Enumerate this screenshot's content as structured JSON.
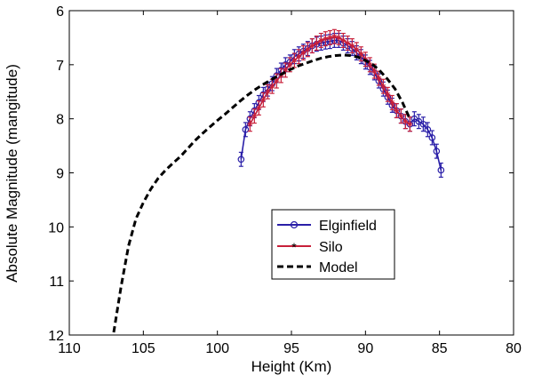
{
  "chart_data": {
    "type": "line",
    "title": "",
    "xlabel": "Height (Km)",
    "ylabel": "Absolute Magnitude (mangitude)",
    "xlim": [
      80,
      110
    ],
    "ylim": [
      6,
      12
    ],
    "x_reversed": true,
    "y_reversed": true,
    "x_ticks": [
      110,
      105,
      100,
      95,
      90,
      85,
      80
    ],
    "y_ticks": [
      6,
      7,
      8,
      9,
      10,
      11,
      12
    ],
    "grid": false,
    "legend_placement": "center-right",
    "series": [
      {
        "name": "Elginfield",
        "color": "#2a1fa8",
        "marker": "circle",
        "style": "solid",
        "x": [
          98.4,
          98.1,
          97.8,
          97.5,
          97.2,
          96.9,
          96.6,
          96.3,
          96.0,
          95.7,
          95.4,
          95.1,
          94.8,
          94.5,
          94.2,
          93.9,
          93.6,
          93.3,
          93.0,
          92.7,
          92.4,
          92.1,
          91.8,
          91.5,
          91.2,
          90.9,
          90.6,
          90.3,
          90.0,
          89.7,
          89.4,
          89.1,
          88.8,
          88.5,
          88.2,
          87.9,
          87.6,
          87.3,
          87.0,
          86.7,
          86.4,
          86.1,
          85.8,
          85.5,
          85.2,
          84.9
        ],
        "y": [
          8.75,
          8.2,
          8.0,
          7.85,
          7.7,
          7.55,
          7.45,
          7.35,
          7.2,
          7.1,
          7.0,
          6.95,
          6.85,
          6.8,
          6.75,
          6.7,
          6.65,
          6.62,
          6.6,
          6.58,
          6.57,
          6.55,
          6.55,
          6.6,
          6.65,
          6.7,
          6.78,
          6.85,
          6.95,
          7.05,
          7.15,
          7.3,
          7.45,
          7.6,
          7.75,
          7.85,
          7.95,
          8.05,
          8.1,
          8.0,
          8.05,
          8.1,
          8.2,
          8.35,
          8.6,
          8.95
        ],
        "err": 0.13
      },
      {
        "name": "Silo",
        "color": "#c8203a",
        "marker": "star",
        "style": "solid",
        "x": [
          97.8,
          97.5,
          97.2,
          96.9,
          96.6,
          96.3,
          96.0,
          95.7,
          95.4,
          95.1,
          94.8,
          94.5,
          94.2,
          93.9,
          93.6,
          93.3,
          93.0,
          92.7,
          92.4,
          92.1,
          91.8,
          91.5,
          91.2,
          90.9,
          90.6,
          90.3,
          90.0,
          89.7,
          89.4,
          89.1,
          88.8,
          88.5,
          88.2,
          87.9,
          87.6,
          87.3,
          87.0
        ],
        "y": [
          8.1,
          7.95,
          7.8,
          7.65,
          7.5,
          7.4,
          7.3,
          7.2,
          7.1,
          7.0,
          6.92,
          6.85,
          6.78,
          6.72,
          6.65,
          6.6,
          6.55,
          6.52,
          6.5,
          6.48,
          6.5,
          6.55,
          6.6,
          6.65,
          6.72,
          6.8,
          6.9,
          7.0,
          7.12,
          7.25,
          7.4,
          7.55,
          7.7,
          7.85,
          7.95,
          8.05,
          8.1
        ],
        "err": 0.13
      },
      {
        "name": "Model",
        "color": "#000000",
        "marker": "none",
        "style": "dashed",
        "x": [
          107.0,
          106.5,
          106.0,
          105.5,
          105.0,
          104.5,
          104.0,
          103.5,
          103.0,
          102.5,
          102.0,
          101.5,
          101.0,
          100.5,
          100.0,
          99.5,
          99.0,
          98.5,
          98.0,
          97.5,
          97.0,
          96.5,
          96.0,
          95.5,
          95.0,
          94.5,
          94.0,
          93.5,
          93.0,
          92.5,
          92.0,
          91.5,
          91.0,
          90.5,
          90.0,
          89.5,
          89.0,
          88.5,
          88.0,
          87.5,
          87.0
        ],
        "y": [
          11.95,
          11.1,
          10.35,
          9.85,
          9.55,
          9.3,
          9.1,
          8.95,
          8.82,
          8.7,
          8.55,
          8.4,
          8.27,
          8.15,
          8.03,
          7.92,
          7.8,
          7.68,
          7.57,
          7.47,
          7.38,
          7.3,
          7.22,
          7.15,
          7.08,
          7.02,
          6.97,
          6.92,
          6.88,
          6.85,
          6.83,
          6.82,
          6.83,
          6.86,
          6.92,
          7.0,
          7.12,
          7.27,
          7.45,
          7.7,
          8.0
        ]
      }
    ]
  }
}
